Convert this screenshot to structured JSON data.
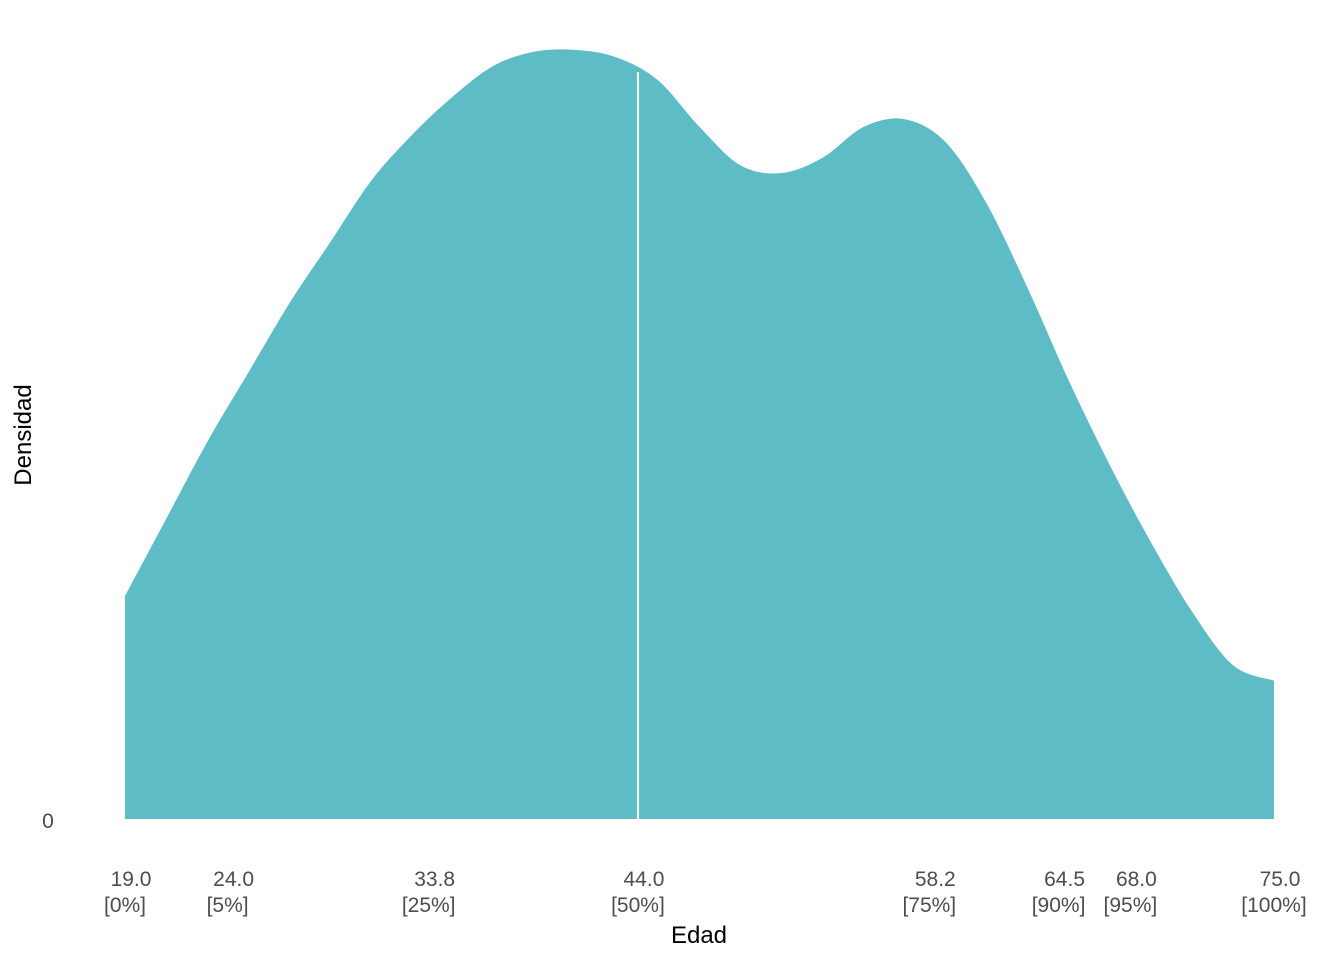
{
  "chart_data": {
    "type": "area",
    "title": "",
    "xlabel": "Edad",
    "ylabel": "Densidad",
    "xlim": [
      19.0,
      75.0
    ],
    "ylim": [
      0,
      1
    ],
    "y_tick_labels": [
      "0"
    ],
    "grid": false,
    "fill_color": "#5DBCC5",
    "median_line_color": "#ffffff",
    "median": 44.0,
    "quantile_ticks": [
      {
        "value": "19.0",
        "pct": "[0%]",
        "x": 19.0
      },
      {
        "value": "24.0",
        "pct": "[5%]",
        "x": 24.0
      },
      {
        "value": "33.8",
        "pct": "[25%]",
        "x": 33.8
      },
      {
        "value": "44.0",
        "pct": "[50%]",
        "x": 44.0
      },
      {
        "value": "58.2",
        "pct": "[75%]",
        "x": 58.2
      },
      {
        "value": "64.5",
        "pct": "[90%]",
        "x": 64.5
      },
      {
        "value": "68.0",
        "pct": "[95%]",
        "x": 68.0
      },
      {
        "value": "75.0",
        "pct": "[100%]",
        "x": 75.0
      }
    ],
    "density": {
      "x": [
        19,
        21,
        23,
        25,
        27,
        29,
        31,
        33,
        35,
        37,
        39,
        41,
        43,
        45,
        47,
        49,
        51,
        53,
        55,
        57,
        59,
        61,
        63,
        65,
        67,
        69,
        71,
        73,
        75
      ],
      "y": [
        0.29,
        0.39,
        0.49,
        0.58,
        0.67,
        0.75,
        0.83,
        0.89,
        0.94,
        0.98,
        0.998,
        1.0,
        0.99,
        0.96,
        0.9,
        0.85,
        0.84,
        0.86,
        0.9,
        0.91,
        0.88,
        0.8,
        0.69,
        0.57,
        0.46,
        0.36,
        0.27,
        0.2,
        0.18
      ]
    }
  }
}
